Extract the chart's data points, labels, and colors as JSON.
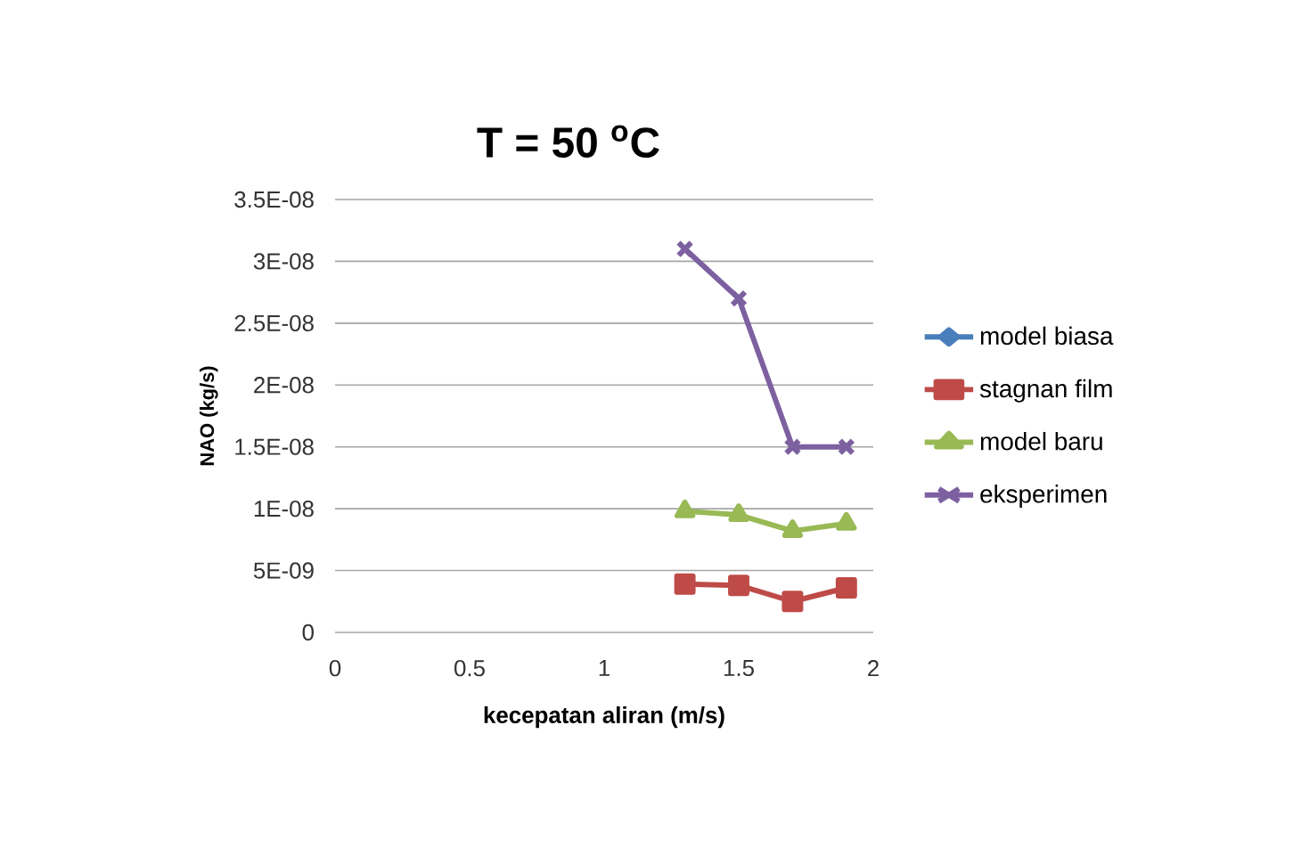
{
  "chart_data": {
    "type": "line",
    "title": "T = 50 $^{o}$C",
    "xlabel": "kecepatan aliran (m/s)",
    "ylabel": "NAO (kg/s)",
    "x": [
      1.3,
      1.5,
      1.7,
      1.9
    ],
    "series": [
      {
        "name": "model biasa",
        "color": "#4a7ebb",
        "marker": "diamond",
        "values": [
          null,
          null,
          null,
          null
        ]
      },
      {
        "name": "stagnan film",
        "color": "#be4b48",
        "marker": "square",
        "values": [
          3.9e-09,
          3.8e-09,
          2.5e-09,
          3.6e-09
        ]
      },
      {
        "name": "model baru",
        "color": "#98b954",
        "marker": "triangle",
        "values": [
          9.8e-09,
          9.5e-09,
          8.2e-09,
          8.8e-09
        ]
      },
      {
        "name": "eksperimen",
        "color": "#7d60a0",
        "marker": "cross",
        "values": [
          3.1e-08,
          2.7e-08,
          1.5e-08,
          1.5e-08
        ]
      }
    ],
    "xlim": [
      0,
      2
    ],
    "xticks": [
      0,
      0.5,
      1,
      1.5,
      2
    ],
    "ylim": [
      0,
      3.5e-08
    ],
    "yticks": [
      {
        "value": 0,
        "label": "0"
      },
      {
        "value": 5e-09,
        "label": "5E-09"
      },
      {
        "value": 1e-08,
        "label": "1E-08"
      },
      {
        "value": 1.5e-08,
        "label": "1.5E-08"
      },
      {
        "value": 2e-08,
        "label": "2E-08"
      },
      {
        "value": 2.5e-08,
        "label": "2.5E-08"
      },
      {
        "value": 3e-08,
        "label": "3E-08"
      },
      {
        "value": 3.5e-08,
        "label": "3.5E-08"
      }
    ],
    "grid": "y",
    "legend": "right",
    "line_style": "solid"
  }
}
